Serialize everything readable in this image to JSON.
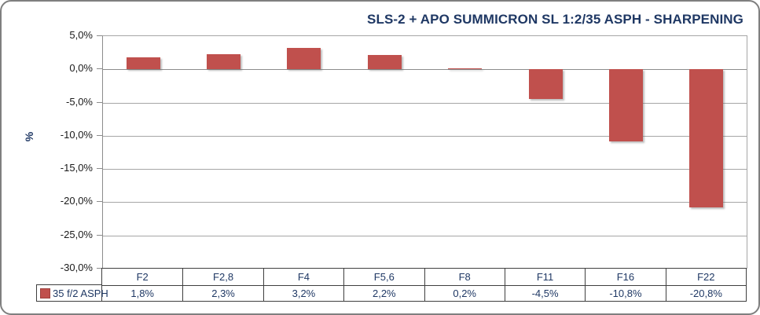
{
  "title": "SLS-2 + APO SUMMICRON SL 1:2/35 ASPH - SHARPENING",
  "y_axis_title": "%",
  "legend": {
    "label": "35 f/2 ASPH"
  },
  "y_ticks": [
    {
      "label": "5,0%",
      "value": 5
    },
    {
      "label": "0,0%",
      "value": 0
    },
    {
      "label": "-5,0%",
      "value": -5
    },
    {
      "label": "-10,0%",
      "value": -10
    },
    {
      "label": "-15,0%",
      "value": -15
    },
    {
      "label": "-20,0%",
      "value": -20
    },
    {
      "label": "-25,0%",
      "value": -25
    },
    {
      "label": "-30,0%",
      "value": -30
    }
  ],
  "chart_data": {
    "type": "bar",
    "title": "SLS-2 + APO SUMMICRON SL 1:2/35 ASPH - SHARPENING",
    "categories": [
      "F2",
      "F2,8",
      "F4",
      "F5,6",
      "F8",
      "F11",
      "F16",
      "F22"
    ],
    "series": [
      {
        "name": "35 f/2 ASPH",
        "values": [
          1.8,
          2.3,
          3.2,
          2.2,
          0.2,
          -4.5,
          -10.8,
          -20.8
        ],
        "value_labels": [
          "1,8%",
          "2,3%",
          "3,2%",
          "2,2%",
          "0,2%",
          "-4,5%",
          "-10,8%",
          "-20,8%"
        ]
      }
    ],
    "xlabel": "",
    "ylabel": "%",
    "ylim": [
      -30,
      5
    ],
    "y_tick_step": 5,
    "grid": true,
    "legend_position": "bottom-left-table"
  },
  "colors": {
    "bar": "#C0504D",
    "swatch_border": "#9E413E",
    "title_text": "#1F3864",
    "table_text": "#1F3864",
    "tick_label_text": "#1a1a1a",
    "gridline": "#A6A6A6",
    "axis_line": "#8C8C8C",
    "table_border": "#3f3f3f",
    "frame_border": "#7f7f7f"
  }
}
